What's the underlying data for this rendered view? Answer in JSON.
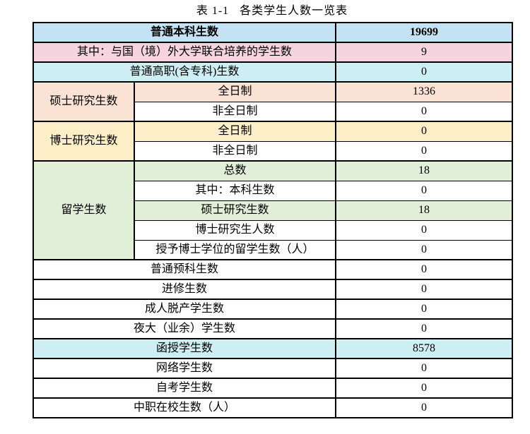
{
  "title": "表 1-1   各类学生人数一览表",
  "colors": {
    "row-blue": "#c3e2f3",
    "row-pink": "#f5d4df",
    "row-cyan": "#cdeef2",
    "row-peach": "#fae3d4",
    "row-yellow": "#fcefc8",
    "row-green": "#e1eed8",
    "border": "#000000"
  },
  "table": {
    "groups": {
      "masters": "硕士研究生数",
      "doctoral": "博士研究生数",
      "international": "留学生数"
    },
    "rows": [
      {
        "label": "普通本科生数",
        "value": "19699"
      },
      {
        "label": "其中：与国（境）外大学联合培养的学生数",
        "value": "9"
      },
      {
        "label": "普通高职(含专科)生数",
        "value": "0"
      },
      {
        "label": "全日制",
        "value": "1336"
      },
      {
        "label": "非全日制",
        "value": "0"
      },
      {
        "label": "全日制",
        "value": "0"
      },
      {
        "label": "非全日制",
        "value": "0"
      },
      {
        "label": "总数",
        "value": "18"
      },
      {
        "label": "其中：本科生数",
        "value": "0"
      },
      {
        "label": "硕士研究生数",
        "value": "18"
      },
      {
        "label": "博士研究生人数",
        "value": "0"
      },
      {
        "label": "授予博士学位的留学生数（人）",
        "value": "0"
      },
      {
        "label": "普通预科生数",
        "value": "0"
      },
      {
        "label": "进修生数",
        "value": "0"
      },
      {
        "label": "成人脱产学生数",
        "value": "0"
      },
      {
        "label": "夜大（业余）学生数",
        "value": "0"
      },
      {
        "label": "函授学生数",
        "value": "8578"
      },
      {
        "label": "网络学生数",
        "value": "0"
      },
      {
        "label": "自考学生数",
        "value": "0"
      },
      {
        "label": "中职在校生数（人）",
        "value": "0"
      }
    ]
  }
}
